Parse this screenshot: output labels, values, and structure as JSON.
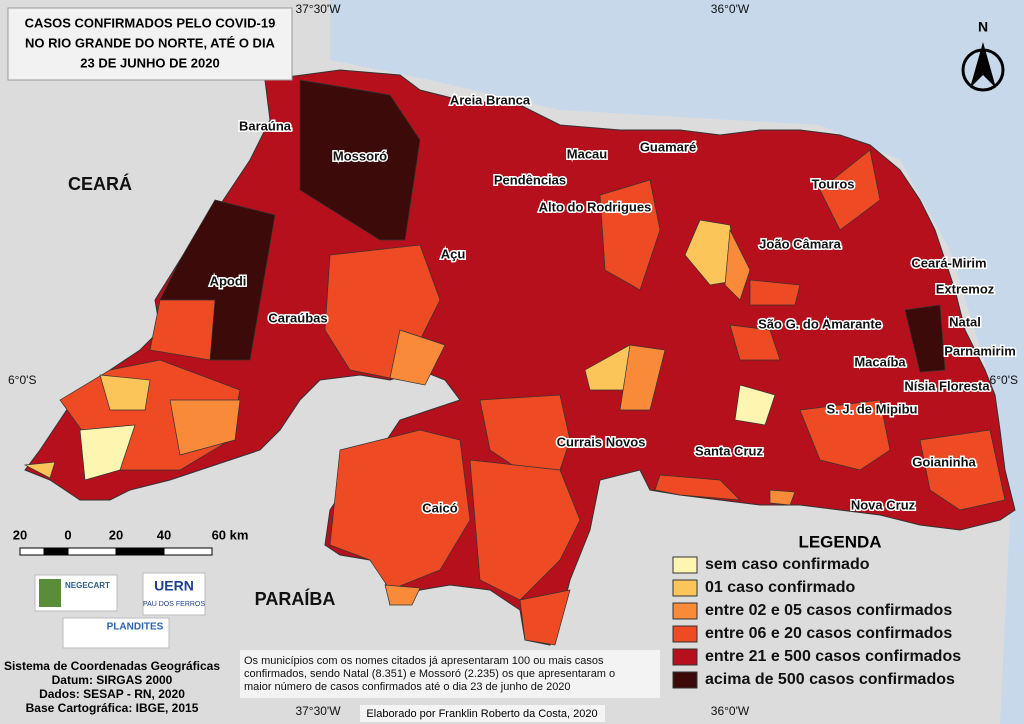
{
  "title": [
    "CASOS CONFIRMADOS PELO COVID-19",
    "NO RIO GRANDE DO NORTE, ATÉ O DIA",
    "23 DE JUNHO DE 2020"
  ],
  "graticule": [
    "37°30'W",
    "36°0'W",
    "37°30'W",
    "36°0'W",
    "6°0'S",
    "6°0'S"
  ],
  "north": "N",
  "regions": [
    "CEARÁ",
    "PARAÍBA"
  ],
  "cities": [
    "Areia Branca",
    "Baraúna",
    "Mossoró",
    "Macau",
    "Guamaré",
    "Pendências",
    "Touros",
    "Alto do Rodrigues",
    "João Câmara",
    "Açu",
    "Ceará-Mirim",
    "Extremoz",
    "Apodi",
    "Caraúbas",
    "São G. do Amarante",
    "Natal",
    "Macaíba",
    "Parnamirim",
    "Nísia Floresta",
    "S. J. de Mipibu",
    "Currais Novos",
    "Santa Cruz",
    "Goianinha",
    "Caicó",
    "Nova Cruz"
  ],
  "scale_bar": [
    "20",
    "0",
    "20",
    "40",
    "60 km"
  ],
  "legend": {
    "title": "LEGENDA",
    "items": [
      {
        "label": "sem caso confirmado",
        "color": "#fdf5b0"
      },
      {
        "label": "01 caso confirmado",
        "color": "#fcc55a"
      },
      {
        "label": "entre 02 e 05 casos confirmados",
        "color": "#f88a3a"
      },
      {
        "label": "entre 06 e 20 casos confirmados",
        "color": "#ee4a23"
      },
      {
        "label": "entre 21 e 500 casos confirmados",
        "color": "#b5101c"
      },
      {
        "label": "acima de 500 casos confirmados",
        "color": "#3d0a0a"
      }
    ]
  },
  "logos": [
    "NEGECART",
    "UERN",
    "PAU DOS FERROS",
    "PLANDITES"
  ],
  "info": [
    "Sistema de Coordenadas Geográficas",
    "Datum: SIRGAS 2000",
    "Dados: SESAP - RN, 2020",
    "Base Cartográfica: IBGE, 2015"
  ],
  "note": [
    "Os municípios com os nomes citados já apresentaram 100 ou mais casos",
    "confirmados, sendo Natal (8.351) e Mossoró (2.235) os que apresentaram o",
    "maior número de casos confirmados até o dia 23 de junho de 2020"
  ],
  "credit": "Elaborado por Franklin Roberto da Costa, 2020"
}
